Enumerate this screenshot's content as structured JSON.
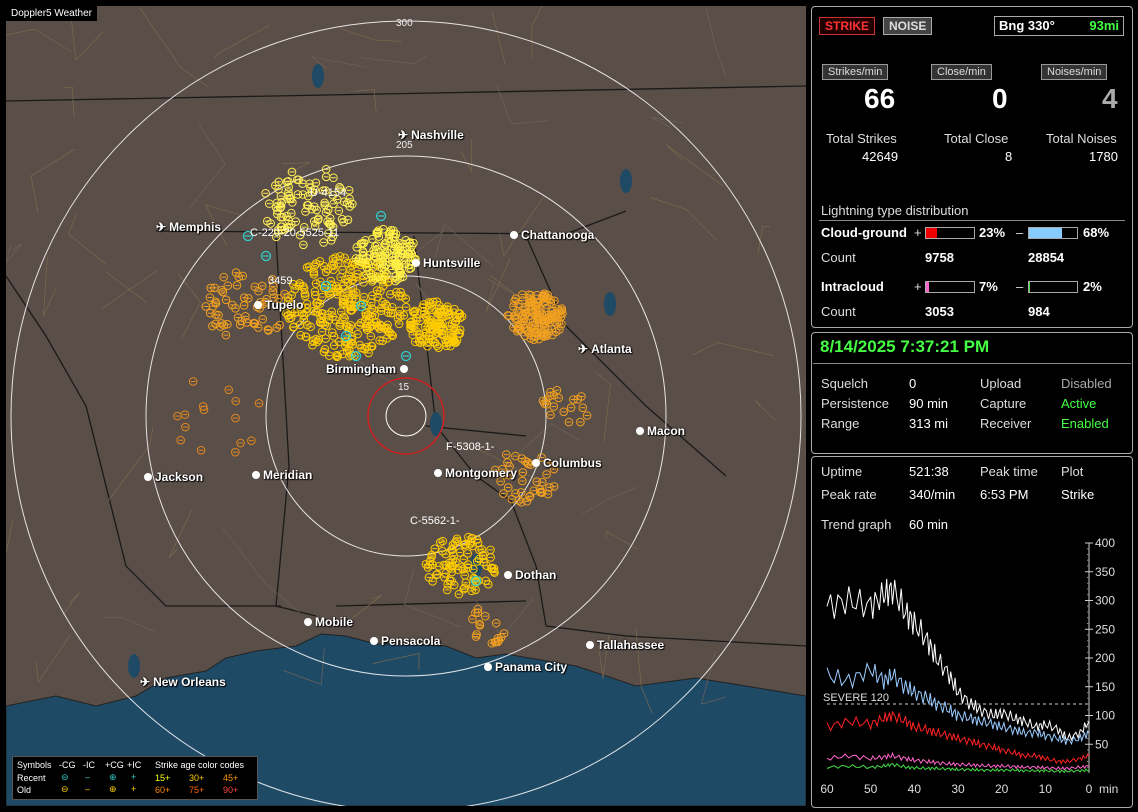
{
  "app_title": "Doppler5 Weather",
  "map": {
    "ring_labels": [
      "300",
      "205",
      "15"
    ],
    "cities": [
      {
        "name": "Nashville",
        "type": "airport"
      },
      {
        "name": "Memphis",
        "type": "airport"
      },
      {
        "name": "Chattanooga",
        "type": "city"
      },
      {
        "name": "Huntsville",
        "type": "city"
      },
      {
        "name": "Tupelo",
        "type": "city"
      },
      {
        "name": "Atlanta",
        "type": "airport"
      },
      {
        "name": "Birmingham",
        "type": "city"
      },
      {
        "name": "Macon",
        "type": "city"
      },
      {
        "name": "Jackson",
        "type": "city"
      },
      {
        "name": "Meridian",
        "type": "city"
      },
      {
        "name": "Montgomery",
        "type": "city"
      },
      {
        "name": "Columbus",
        "type": "city"
      },
      {
        "name": "Dothan",
        "type": "city"
      },
      {
        "name": "Mobile",
        "type": "city"
      },
      {
        "name": "Pensacola",
        "type": "city"
      },
      {
        "name": "Tallahassee",
        "type": "city"
      },
      {
        "name": "Panama City",
        "type": "city"
      },
      {
        "name": "New Orleans",
        "type": "airport"
      }
    ],
    "storm_labels": [
      "U-4154",
      "C-220-20-5525-11",
      "3459",
      "F-5308-1-",
      "C-5562-1-"
    ],
    "colors": {
      "land": "#5a4e48",
      "water": "#1f4a66",
      "ring": "#ffffff",
      "range_ring": "#d02020",
      "recent": "#33cccc",
      "old": "#ffcc00"
    }
  },
  "symbol_legend": {
    "header": [
      "Symbols",
      "-CG",
      "-IC",
      "+CG",
      "+IC",
      "Strike age color codes"
    ],
    "recent": {
      "label": "Recent",
      "ages": [
        "15+",
        "30+",
        "45+"
      ]
    },
    "old": {
      "label": "Old",
      "ages": [
        "60+",
        "75+",
        "90+"
      ]
    }
  },
  "panel_top": {
    "strike_btn": "STRIKE",
    "noise_btn": "NOISE",
    "bearing": "Bng 330°",
    "distance": "93mi",
    "strikes_min_label": "Strikes/min",
    "close_min_label": "Close/min",
    "noises_min_label": "Noises/min",
    "strikes_min": "66",
    "close_min": "0",
    "noises_min": "4",
    "total_strikes_label": "Total Strikes",
    "total_close_label": "Total Close",
    "total_noises_label": "Total Noises",
    "total_strikes": "42649",
    "total_close": "8",
    "total_noises": "1780",
    "dist_title": "Lightning type distribution",
    "cg_label": "Cloud-ground",
    "ic_label": "Intracloud",
    "count_label": "Count",
    "cg_pos_pct": "23%",
    "cg_neg_pct": "68%",
    "cg_pos_count": "9758",
    "cg_neg_count": "28854",
    "ic_pos_pct": "7%",
    "ic_neg_pct": "2%",
    "ic_pos_count": "3053",
    "ic_neg_count": "984",
    "plus": "+",
    "minus": "–"
  },
  "panel_mid": {
    "datetime": "8/14/2025 7:37:21 PM",
    "squelch_label": "Squelch",
    "squelch": "0",
    "persistence_label": "Persistence",
    "persistence": "90 min",
    "range_label": "Range",
    "range": "313 mi",
    "upload_label": "Upload",
    "upload": "Disabled",
    "capture_label": "Capture",
    "capture": "Active",
    "receiver_label": "Receiver",
    "receiver": "Enabled"
  },
  "panel_bottom": {
    "uptime_label": "Uptime",
    "uptime": "521:38",
    "peak_time_label": "Peak time",
    "peak_time": "6:53 PM",
    "plot_label": "Plot",
    "plot": "Strike",
    "peak_rate_label": "Peak rate",
    "peak_rate": "340/min",
    "trend_label": "Trend graph",
    "trend": "60 min",
    "severe_label": "SEVERE 120",
    "x_unit": "min"
  },
  "chart_data": {
    "type": "line",
    "xlabel": "min",
    "x_ticks": [
      60,
      50,
      40,
      30,
      20,
      10,
      0
    ],
    "y_ticks": [
      50,
      100,
      150,
      200,
      250,
      300,
      350,
      400
    ],
    "ylim": [
      0,
      400
    ],
    "threshold": {
      "label": "SEVERE 120",
      "value": 120
    },
    "x": [
      60,
      55,
      50,
      47,
      45,
      42,
      40,
      37,
      35,
      32,
      30,
      27,
      25,
      22,
      20,
      17,
      15,
      12,
      10,
      7,
      5,
      2,
      0
    ],
    "series": [
      {
        "color": "#ffffff",
        "values": [
          290,
          300,
          290,
          310,
          320,
          280,
          260,
          230,
          200,
          170,
          140,
          120,
          110,
          100,
          105,
          95,
          90,
          80,
          85,
          75,
          60,
          70,
          90
        ]
      },
      {
        "color": "#99ccff",
        "values": [
          170,
          160,
          180,
          160,
          170,
          150,
          140,
          130,
          120,
          110,
          100,
          95,
          90,
          85,
          80,
          75,
          70,
          70,
          65,
          60,
          55,
          60,
          70
        ]
      },
      {
        "color": "#ff2222",
        "values": [
          80,
          90,
          85,
          95,
          100,
          90,
          80,
          75,
          70,
          65,
          60,
          55,
          50,
          45,
          40,
          35,
          30,
          30,
          25,
          20,
          20,
          25,
          30
        ]
      },
      {
        "color": "#ff66cc",
        "values": [
          25,
          30,
          25,
          28,
          30,
          25,
          22,
          20,
          18,
          16,
          15,
          14,
          13,
          12,
          12,
          11,
          10,
          10,
          9,
          8,
          8,
          10,
          12
        ]
      },
      {
        "color": "#44dd44",
        "values": [
          10,
          12,
          10,
          12,
          15,
          10,
          9,
          8,
          8,
          7,
          6,
          6,
          5,
          5,
          5,
          5,
          4,
          4,
          4,
          3,
          3,
          4,
          5
        ]
      }
    ]
  }
}
